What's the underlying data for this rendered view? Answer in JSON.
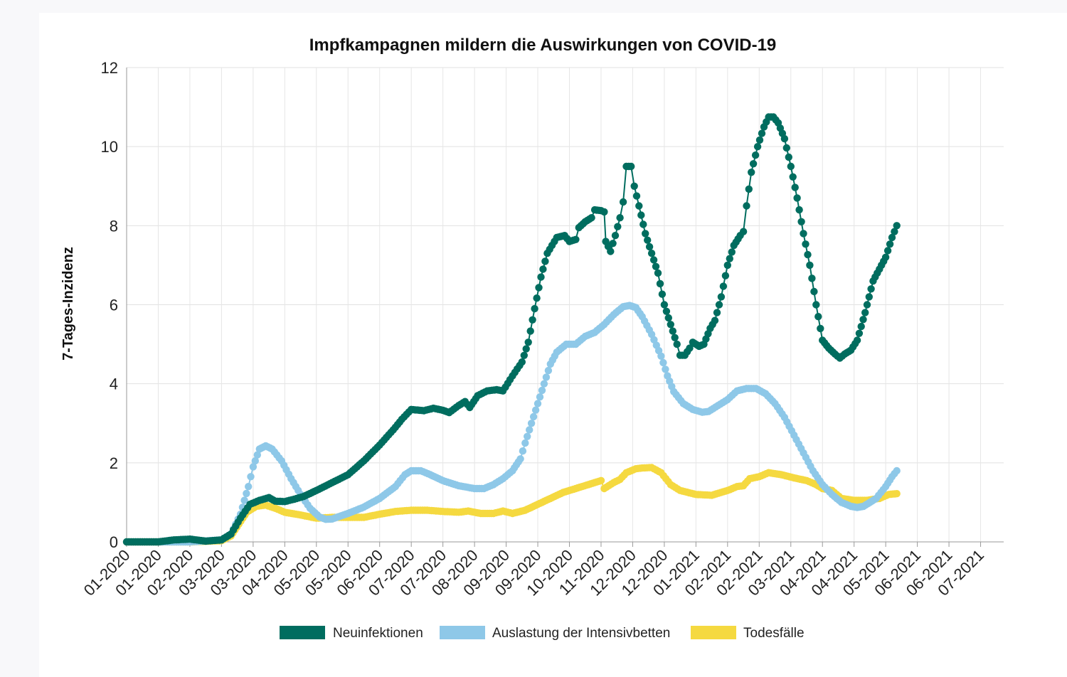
{
  "chart_data": {
    "type": "line",
    "title": "Impfkampagnen mildern die Auswirkungen von COVID-19",
    "xlabel": "",
    "ylabel": "7-Tages-Inzidenz",
    "ylim": [
      0,
      12
    ],
    "yticks": [
      0,
      2,
      4,
      6,
      8,
      10,
      12
    ],
    "grid": true,
    "legend_position": "bottom",
    "x_tick_labels": [
      "01-2020",
      "01-2020",
      "02-2020",
      "03-2020",
      "03-2020",
      "04-2020",
      "05-2020",
      "05-2020",
      "06-2020",
      "07-2020",
      "07-2020",
      "08-2020",
      "09-2020",
      "09-2020",
      "10-2020",
      "11-2020",
      "12-2020",
      "12-2020",
      "01-2021",
      "02-2021",
      "02-2021",
      "03-2021",
      "04-2021",
      "04-2021",
      "05-2021",
      "06-2021",
      "06-2021",
      "07-2021"
    ],
    "x": [
      0,
      1,
      2,
      3,
      4,
      5,
      6,
      7,
      8,
      9,
      10,
      11,
      12,
      13,
      14,
      15,
      16,
      17,
      18,
      19,
      20,
      21,
      22,
      23,
      24,
      25,
      26,
      27
    ],
    "series": [
      {
        "name": "Neuinfektionen",
        "color": "#006d5f",
        "points": [
          [
            0,
            0
          ],
          [
            0.5,
            0
          ],
          [
            1,
            0
          ],
          [
            1.5,
            0.05
          ],
          [
            2,
            0.07
          ],
          [
            2.5,
            0.02
          ],
          [
            3,
            0.05
          ],
          [
            3.3,
            0.2
          ],
          [
            3.6,
            0.6
          ],
          [
            3.9,
            0.95
          ],
          [
            4.2,
            1.05
          ],
          [
            4.5,
            1.12
          ],
          [
            4.7,
            1.03
          ],
          [
            5,
            1.02
          ],
          [
            5.3,
            1.08
          ],
          [
            5.6,
            1.15
          ],
          [
            6,
            1.3
          ],
          [
            6.5,
            1.5
          ],
          [
            7,
            1.7
          ],
          [
            7.5,
            2.05
          ],
          [
            8,
            2.45
          ],
          [
            8.5,
            2.9
          ],
          [
            8.7,
            3.1
          ],
          [
            9,
            3.35
          ],
          [
            9.4,
            3.32
          ],
          [
            9.7,
            3.38
          ],
          [
            10,
            3.33
          ],
          [
            10.2,
            3.27
          ],
          [
            10.5,
            3.45
          ],
          [
            10.7,
            3.55
          ],
          [
            10.85,
            3.4
          ],
          [
            11.1,
            3.7
          ],
          [
            11.4,
            3.82
          ],
          [
            11.7,
            3.85
          ],
          [
            11.9,
            3.82
          ],
          [
            12.2,
            4.2
          ],
          [
            12.5,
            4.55
          ],
          [
            12.7,
            5.05
          ],
          [
            12.9,
            5.9
          ],
          [
            13.1,
            6.7
          ],
          [
            13.3,
            7.3
          ],
          [
            13.6,
            7.7
          ],
          [
            13.85,
            7.75
          ],
          [
            14,
            7.6
          ],
          [
            14.2,
            7.65
          ],
          [
            14.3,
            7.95
          ],
          [
            14.5,
            8.1
          ],
          [
            14.7,
            8.2
          ],
          [
            14.8,
            8.4
          ],
          [
            15,
            8.38
          ],
          [
            15.1,
            8.35
          ],
          [
            15.15,
            7.6
          ],
          [
            15.3,
            7.35
          ],
          [
            15.45,
            7.75
          ],
          [
            15.6,
            8.2
          ],
          [
            15.7,
            8.6
          ],
          [
            15.8,
            9.5
          ],
          [
            15.95,
            9.5
          ],
          [
            16.05,
            9.0
          ],
          [
            16.2,
            8.5
          ],
          [
            16.4,
            7.8
          ],
          [
            16.6,
            7.3
          ],
          [
            16.8,
            6.8
          ],
          [
            17,
            6.0
          ],
          [
            17.2,
            5.5
          ],
          [
            17.4,
            5.0
          ],
          [
            17.5,
            4.72
          ],
          [
            17.65,
            4.72
          ],
          [
            17.8,
            4.9
          ],
          [
            17.9,
            5.05
          ],
          [
            18.1,
            4.95
          ],
          [
            18.25,
            5.0
          ],
          [
            18.45,
            5.4
          ],
          [
            18.6,
            5.6
          ],
          [
            18.8,
            6.2
          ],
          [
            19,
            7.0
          ],
          [
            19.2,
            7.5
          ],
          [
            19.4,
            7.75
          ],
          [
            19.5,
            7.85
          ],
          [
            19.6,
            8.5
          ],
          [
            19.75,
            9.35
          ],
          [
            19.95,
            10.0
          ],
          [
            20.15,
            10.5
          ],
          [
            20.3,
            10.75
          ],
          [
            20.45,
            10.75
          ],
          [
            20.6,
            10.6
          ],
          [
            20.8,
            10.2
          ],
          [
            21,
            9.5
          ],
          [
            21.2,
            8.7
          ],
          [
            21.4,
            7.8
          ],
          [
            21.6,
            7.0
          ],
          [
            21.8,
            6.0
          ],
          [
            22,
            5.1
          ],
          [
            22.2,
            4.9
          ],
          [
            22.4,
            4.75
          ],
          [
            22.55,
            4.65
          ],
          [
            22.7,
            4.75
          ],
          [
            22.9,
            4.85
          ],
          [
            23.1,
            5.1
          ],
          [
            23.35,
            5.8
          ],
          [
            23.6,
            6.6
          ],
          [
            23.8,
            6.9
          ],
          [
            24,
            7.2
          ],
          [
            24.2,
            7.7
          ],
          [
            24.35,
            8.0
          ]
        ]
      },
      {
        "name": "Auslastung der Intensivbetten",
        "color": "#8ec8e8",
        "points": [
          [
            0,
            0
          ],
          [
            2,
            0
          ],
          [
            3,
            0.05
          ],
          [
            3.3,
            0.2
          ],
          [
            3.6,
            0.7
          ],
          [
            3.85,
            1.4
          ],
          [
            4,
            1.9
          ],
          [
            4.2,
            2.35
          ],
          [
            4.4,
            2.43
          ],
          [
            4.6,
            2.35
          ],
          [
            4.9,
            2.05
          ],
          [
            5.2,
            1.6
          ],
          [
            5.5,
            1.2
          ],
          [
            5.8,
            0.85
          ],
          [
            6.1,
            0.63
          ],
          [
            6.3,
            0.57
          ],
          [
            6.5,
            0.58
          ],
          [
            7,
            0.72
          ],
          [
            7.5,
            0.88
          ],
          [
            8,
            1.1
          ],
          [
            8.5,
            1.4
          ],
          [
            8.8,
            1.7
          ],
          [
            9,
            1.8
          ],
          [
            9.3,
            1.8
          ],
          [
            9.6,
            1.7
          ],
          [
            10,
            1.55
          ],
          [
            10.5,
            1.42
          ],
          [
            11,
            1.35
          ],
          [
            11.3,
            1.35
          ],
          [
            11.6,
            1.45
          ],
          [
            11.9,
            1.6
          ],
          [
            12.2,
            1.8
          ],
          [
            12.45,
            2.1
          ],
          [
            12.6,
            2.5
          ],
          [
            12.8,
            3.0
          ],
          [
            13,
            3.5
          ],
          [
            13.2,
            4.0
          ],
          [
            13.4,
            4.5
          ],
          [
            13.6,
            4.8
          ],
          [
            13.9,
            5.0
          ],
          [
            14.2,
            5.0
          ],
          [
            14.5,
            5.2
          ],
          [
            14.8,
            5.3
          ],
          [
            15.1,
            5.5
          ],
          [
            15.4,
            5.75
          ],
          [
            15.7,
            5.95
          ],
          [
            15.9,
            5.98
          ],
          [
            16.1,
            5.93
          ],
          [
            16.3,
            5.7
          ],
          [
            16.6,
            5.25
          ],
          [
            16.9,
            4.7
          ],
          [
            17.1,
            4.2
          ],
          [
            17.3,
            3.8
          ],
          [
            17.6,
            3.5
          ],
          [
            17.9,
            3.35
          ],
          [
            18.2,
            3.28
          ],
          [
            18.4,
            3.3
          ],
          [
            18.7,
            3.45
          ],
          [
            19,
            3.6
          ],
          [
            19.3,
            3.82
          ],
          [
            19.6,
            3.88
          ],
          [
            19.9,
            3.88
          ],
          [
            20.2,
            3.75
          ],
          [
            20.5,
            3.5
          ],
          [
            20.8,
            3.15
          ],
          [
            21.1,
            2.7
          ],
          [
            21.4,
            2.25
          ],
          [
            21.7,
            1.8
          ],
          [
            22,
            1.45
          ],
          [
            22.3,
            1.2
          ],
          [
            22.6,
            1.0
          ],
          [
            22.9,
            0.9
          ],
          [
            23.1,
            0.87
          ],
          [
            23.3,
            0.9
          ],
          [
            23.5,
            1.0
          ],
          [
            23.7,
            1.1
          ],
          [
            24.0,
            1.4
          ],
          [
            24.2,
            1.65
          ],
          [
            24.35,
            1.8
          ]
        ]
      },
      {
        "name": "Todesfälle",
        "color": "#f5d940",
        "points": [
          [
            0,
            0
          ],
          [
            2,
            0
          ],
          [
            3,
            0.03
          ],
          [
            3.3,
            0.15
          ],
          [
            3.55,
            0.45
          ],
          [
            3.8,
            0.75
          ],
          [
            4.1,
            0.9
          ],
          [
            4.4,
            0.93
          ],
          [
            4.7,
            0.85
          ],
          [
            5,
            0.75
          ],
          [
            5.5,
            0.68
          ],
          [
            6,
            0.6
          ],
          [
            6.5,
            0.62
          ],
          [
            7,
            0.62
          ],
          [
            7.5,
            0.62
          ],
          [
            8,
            0.7
          ],
          [
            8.5,
            0.77
          ],
          [
            9,
            0.8
          ],
          [
            9.5,
            0.8
          ],
          [
            10,
            0.77
          ],
          [
            10.5,
            0.75
          ],
          [
            10.8,
            0.78
          ],
          [
            11.2,
            0.72
          ],
          [
            11.6,
            0.72
          ],
          [
            11.9,
            0.78
          ],
          [
            12.2,
            0.72
          ],
          [
            12.6,
            0.8
          ],
          [
            13,
            0.95
          ],
          [
            13.4,
            1.1
          ],
          [
            13.8,
            1.25
          ],
          [
            14.2,
            1.35
          ],
          [
            14.6,
            1.45
          ],
          [
            15.0,
            1.55
          ],
          [
            15.1,
            1.35
          ],
          [
            15.4,
            1.5
          ],
          [
            15.6,
            1.58
          ],
          [
            15.8,
            1.75
          ],
          [
            16.1,
            1.85
          ],
          [
            16.3,
            1.87
          ],
          [
            16.6,
            1.88
          ],
          [
            16.9,
            1.75
          ],
          [
            17.2,
            1.45
          ],
          [
            17.5,
            1.3
          ],
          [
            18,
            1.2
          ],
          [
            18.5,
            1.18
          ],
          [
            19,
            1.3
          ],
          [
            19.3,
            1.4
          ],
          [
            19.5,
            1.42
          ],
          [
            19.7,
            1.6
          ],
          [
            20,
            1.65
          ],
          [
            20.3,
            1.75
          ],
          [
            20.7,
            1.7
          ],
          [
            21.1,
            1.62
          ],
          [
            21.5,
            1.55
          ],
          [
            21.8,
            1.45
          ],
          [
            22,
            1.35
          ],
          [
            22.3,
            1.3
          ],
          [
            22.6,
            1.1
          ],
          [
            23,
            1.05
          ],
          [
            23.4,
            1.05
          ],
          [
            23.8,
            1.1
          ],
          [
            24.1,
            1.2
          ],
          [
            24.35,
            1.22
          ]
        ]
      }
    ]
  }
}
